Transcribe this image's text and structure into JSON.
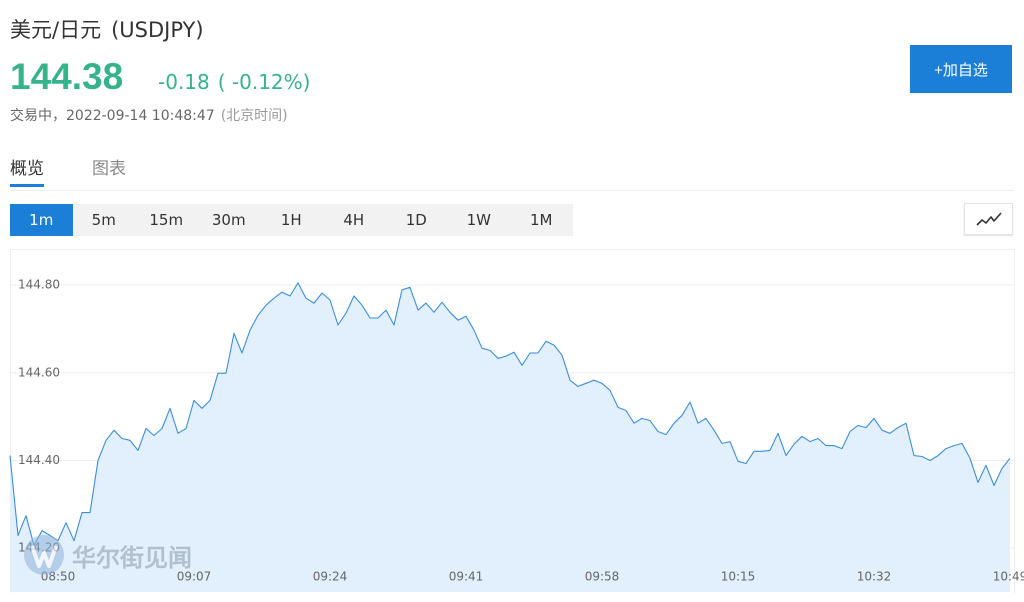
{
  "header": {
    "name": "美元/日元",
    "code": "(USDJPY)",
    "price": "144.38",
    "change": "-0.18",
    "change_pct": "( -0.12%)",
    "status": "交易中，2022-09-14 10:48:47",
    "timezone": "(北京时间)"
  },
  "button": "+加自选",
  "tabs": [
    "概览",
    "图表"
  ],
  "periods": [
    "1m",
    "5m",
    "15m",
    "30m",
    "1H",
    "4H",
    "1D",
    "1W",
    "1M"
  ],
  "watermark": "华尔街见闻",
  "chart_data": {
    "type": "area",
    "color": "#3a8ee0",
    "fill": "#e2effc",
    "grid": true,
    "categories": [
      null,
      null,
      null,
      null,
      null,
      null,
      "08:50",
      null,
      null,
      null,
      null,
      null,
      null,
      null,
      null,
      null,
      null,
      null,
      null,
      null,
      null,
      null,
      null,
      "09:07",
      null,
      null,
      null,
      null,
      null,
      null,
      null,
      null,
      null,
      null,
      null,
      null,
      null,
      null,
      null,
      null,
      "09:24",
      null,
      null,
      null,
      null,
      null,
      null,
      null,
      null,
      null,
      null,
      null,
      null,
      null,
      null,
      null,
      null,
      "09:41",
      null,
      null,
      null,
      null,
      null,
      null,
      null,
      null,
      null,
      null,
      null,
      null,
      null,
      null,
      null,
      null,
      "09:58",
      null,
      null,
      null,
      null,
      null,
      null,
      null,
      null,
      null,
      null,
      null,
      null,
      null,
      null,
      null,
      null,
      "10:15",
      null,
      null,
      null,
      null,
      null,
      null,
      null,
      null,
      null,
      null,
      null,
      null,
      null,
      null,
      null,
      null,
      "10:32",
      null,
      null,
      null,
      null,
      null,
      null,
      null,
      null,
      null,
      null,
      null,
      null,
      null,
      null,
      null,
      null,
      "10:49"
    ],
    "values": [
      144.411,
      144.229,
      144.274,
      144.206,
      144.24,
      144.229,
      144.217,
      144.258,
      144.217,
      144.281,
      144.281,
      144.4,
      144.446,
      144.469,
      144.45,
      144.446,
      144.423,
      144.473,
      144.457,
      144.473,
      144.519,
      144.462,
      144.473,
      144.537,
      144.519,
      144.537,
      144.599,
      144.599,
      144.69,
      144.645,
      144.697,
      144.731,
      144.754,
      144.77,
      144.784,
      144.775,
      144.805,
      144.77,
      144.759,
      144.782,
      144.766,
      144.709,
      144.736,
      144.775,
      144.754,
      144.725,
      144.725,
      144.743,
      144.709,
      144.789,
      144.795,
      144.743,
      144.759,
      144.738,
      144.761,
      144.738,
      144.72,
      144.729,
      144.697,
      144.656,
      144.651,
      144.633,
      144.638,
      144.647,
      144.617,
      144.645,
      144.645,
      144.672,
      144.663,
      144.64,
      144.583,
      144.569,
      144.576,
      144.583,
      144.576,
      144.56,
      144.521,
      144.514,
      144.485,
      144.496,
      144.491,
      144.466,
      144.459,
      144.485,
      144.503,
      144.533,
      144.485,
      144.496,
      144.469,
      144.439,
      144.443,
      144.398,
      144.393,
      144.421,
      144.421,
      144.423,
      144.462,
      144.411,
      144.437,
      144.455,
      144.443,
      144.45,
      144.434,
      144.434,
      144.427,
      144.466,
      144.48,
      144.475,
      144.496,
      144.469,
      144.462,
      144.475,
      144.485,
      144.411,
      144.409,
      144.4,
      144.411,
      144.427,
      144.434,
      144.439,
      144.405,
      144.35,
      144.389,
      144.343,
      144.382,
      144.405
    ],
    "ylim": [
      144.1,
      144.88
    ],
    "yticks": [
      {
        "value": 144.2,
        "label": "144.20"
      },
      {
        "value": 144.4,
        "label": "144.40"
      },
      {
        "value": 144.6,
        "label": "144.60"
      },
      {
        "value": 144.8,
        "label": "144.80"
      }
    ]
  }
}
